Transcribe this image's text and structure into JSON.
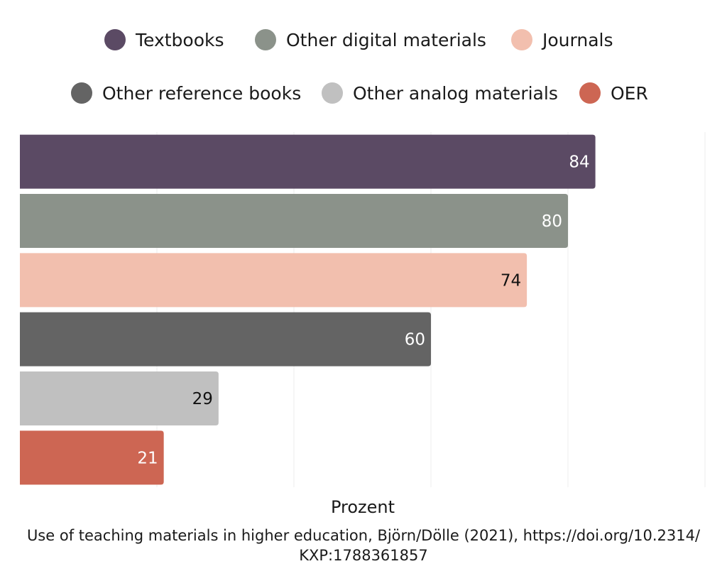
{
  "chart_data": {
    "type": "bar",
    "orientation": "horizontal",
    "categories": [
      "Textbooks",
      "Other digital materials",
      "Journals",
      "Other reference books",
      "Other analog materials",
      "OER"
    ],
    "values": [
      84,
      80,
      74,
      60,
      29,
      21
    ],
    "colors": [
      "#5b4a64",
      "#8b928a",
      "#f2bfae",
      "#646464",
      "#c0c0c0",
      "#cd6653"
    ],
    "label_colors": [
      "#ffffff",
      "#ffffff",
      "#111111",
      "#ffffff",
      "#111111",
      "#ffffff"
    ],
    "xlabel": "Prozent",
    "xlim": [
      0,
      100
    ],
    "gridlines": [
      20,
      40,
      60,
      80,
      100
    ],
    "legend": {
      "position": "top",
      "entries": [
        "Textbooks",
        "Other digital materials",
        "Journals",
        "Other reference books",
        "Other analog materials",
        "OER"
      ]
    },
    "caption_lines": [
      "Use of teaching materials in higher education, Björn/Dölle (2021), https://doi.org/10.2314/",
      "KXP:1788361857"
    ]
  }
}
